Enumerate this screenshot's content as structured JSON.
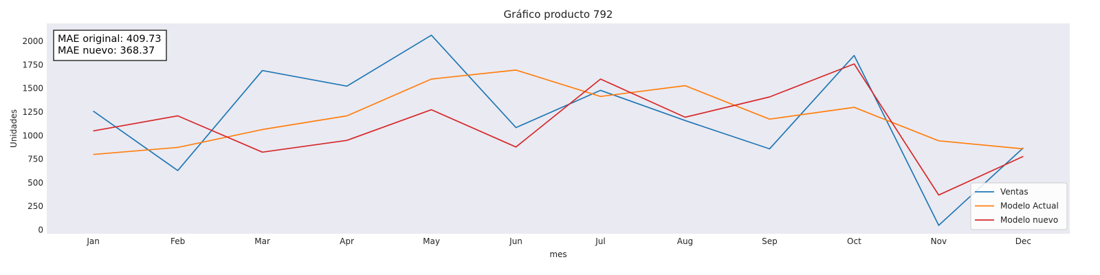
{
  "chart_data": {
    "type": "line",
    "title": "Gráfico producto 792",
    "xlabel": "mes",
    "ylabel": "Unidades",
    "categories": [
      "Jan",
      "Feb",
      "Mar",
      "Apr",
      "May",
      "Jun",
      "Jul",
      "Aug",
      "Sep",
      "Oct",
      "Nov",
      "Dec"
    ],
    "ylim": [
      -40,
      2190
    ],
    "yticks": [
      0,
      250,
      500,
      750,
      1000,
      1250,
      1500,
      1750,
      2000
    ],
    "grid": false,
    "legend_position": "lower-right",
    "series": [
      {
        "name": "Ventas",
        "color": "#1f77b4",
        "values": [
          1260,
          630,
          1690,
          1525,
          2065,
          1085,
          1480,
          1160,
          860,
          1850,
          50,
          870
        ]
      },
      {
        "name": "Modelo Actual",
        "color": "#ff7f0e",
        "values": [
          800,
          875,
          1065,
          1210,
          1600,
          1695,
          1415,
          1530,
          1175,
          1300,
          945,
          860
        ]
      },
      {
        "name": "Modelo nuevo",
        "color": "#d62728",
        "values": [
          1050,
          1210,
          825,
          950,
          1275,
          880,
          1600,
          1195,
          1410,
          1760,
          370,
          780
        ]
      }
    ],
    "annotation": [
      "MAE original: 409.73",
      "MAE nuevo: 368.37"
    ]
  },
  "colors": {
    "plot_background": "#eaeaf2"
  }
}
